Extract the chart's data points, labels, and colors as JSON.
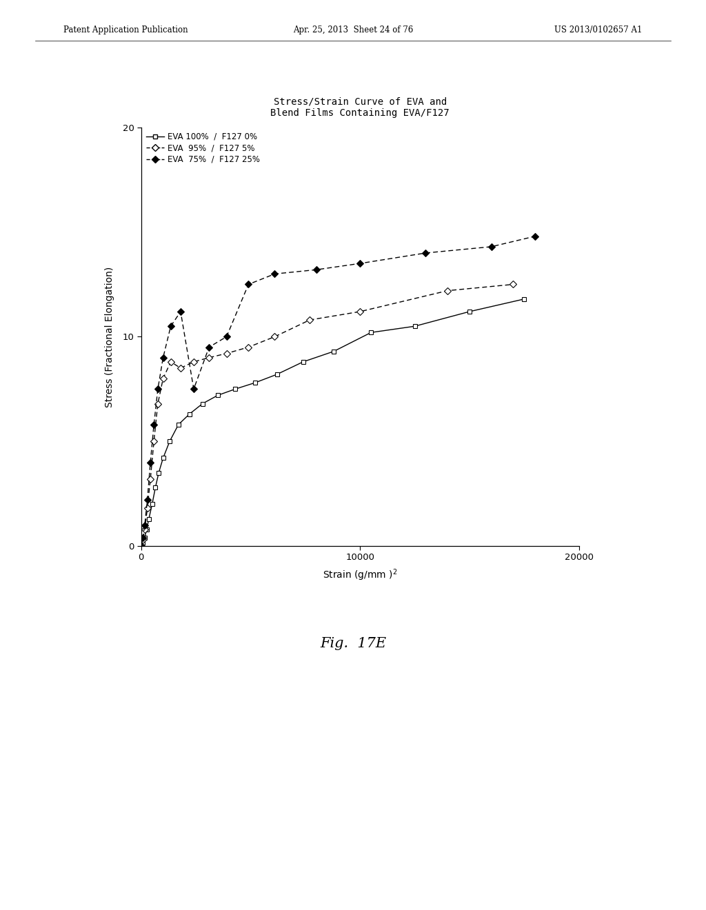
{
  "title_line1": "Stress/Strain Curve of EVA and",
  "title_line2": "Blend Films Containing EVA/F127",
  "ylabel": "Stress (Fractional Elongation)",
  "xlim": [
    0,
    20000
  ],
  "ylim": [
    0,
    20
  ],
  "xticks": [
    0,
    10000,
    20000
  ],
  "yticks": [
    0,
    10,
    20
  ],
  "background_color": "#ffffff",
  "series": [
    {
      "label": "EVA 100%  /  F127 0%",
      "linestyle": "solid",
      "marker": "s",
      "marker_fill": "white",
      "x": [
        0,
        80,
        160,
        250,
        350,
        500,
        650,
        800,
        1000,
        1300,
        1700,
        2200,
        2800,
        3500,
        4300,
        5200,
        6200,
        7400,
        8800,
        10500,
        12500,
        15000,
        17500
      ],
      "y": [
        0,
        0.15,
        0.4,
        0.8,
        1.3,
        2.0,
        2.8,
        3.5,
        4.2,
        5.0,
        5.8,
        6.3,
        6.8,
        7.2,
        7.5,
        7.8,
        8.2,
        8.8,
        9.3,
        10.2,
        10.5,
        11.2,
        11.8
      ]
    },
    {
      "label": "EVA  95%  /  F127 5%",
      "linestyle": "dashed",
      "marker": "D",
      "marker_fill": "white",
      "x": [
        0,
        80,
        160,
        280,
        420,
        580,
        760,
        1000,
        1350,
        1800,
        2400,
        3100,
        3900,
        4900,
        6100,
        7700,
        10000,
        14000,
        17000
      ],
      "y": [
        0,
        0.3,
        0.8,
        1.8,
        3.2,
        5.0,
        6.8,
        8.0,
        8.8,
        8.5,
        8.8,
        9.0,
        9.2,
        9.5,
        10.0,
        10.8,
        11.2,
        12.2,
        12.5
      ]
    },
    {
      "label": "EVA  75%  /  F127 25%",
      "linestyle": "dashed",
      "marker": "D",
      "marker_fill": "black",
      "x": [
        0,
        80,
        160,
        280,
        420,
        580,
        760,
        1000,
        1350,
        1800,
        2400,
        3100,
        3900,
        4900,
        6100,
        8000,
        10000,
        13000,
        16000,
        18000
      ],
      "y": [
        0,
        0.4,
        1.0,
        2.2,
        4.0,
        5.8,
        7.5,
        9.0,
        10.5,
        11.2,
        7.5,
        9.5,
        10.0,
        12.5,
        13.0,
        13.2,
        13.5,
        14.0,
        14.3,
        14.8
      ]
    }
  ],
  "fig_label": "Fig.  17E",
  "header_left": "Patent Application Publication",
  "header_center": "Apr. 25, 2013  Sheet 24 of 76",
  "header_right": "US 2013/0102657 A1"
}
